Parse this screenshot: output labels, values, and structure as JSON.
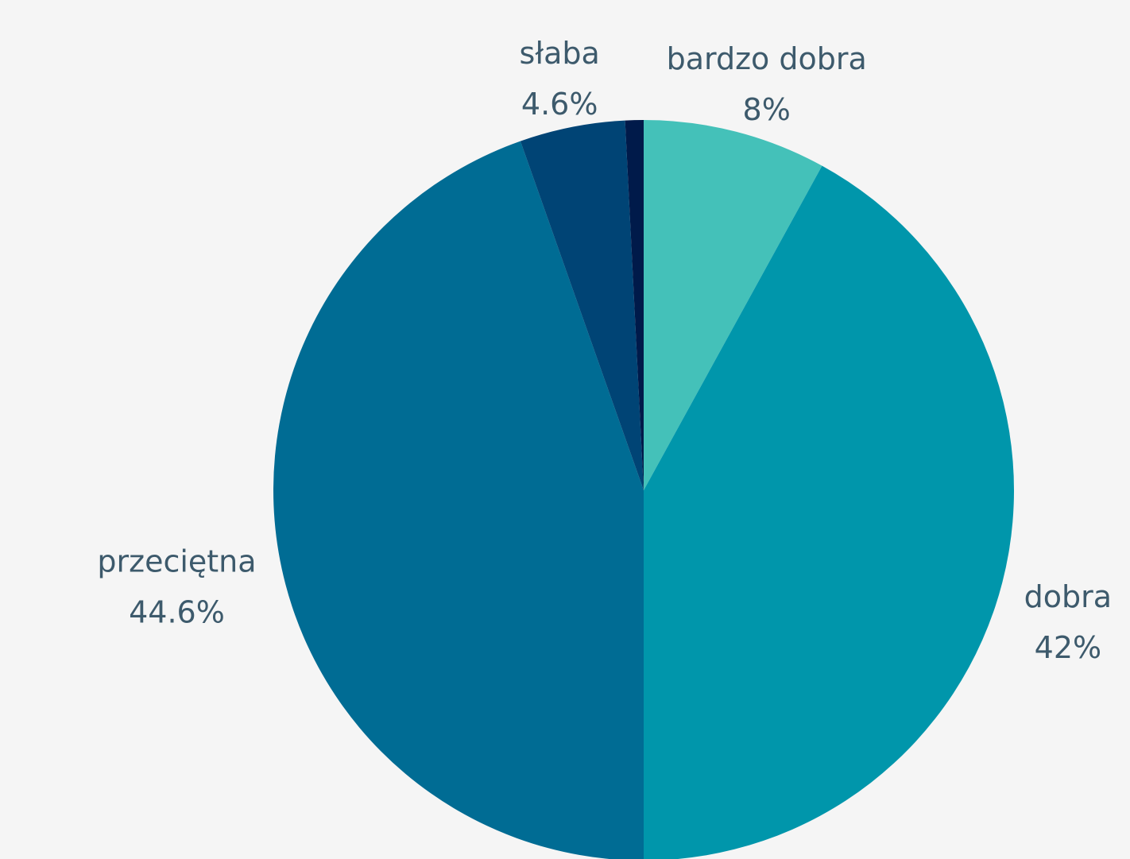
{
  "chart_data": {
    "type": "pie",
    "categories": [
      "bardzo dobra",
      "dobra",
      "przeciętna",
      "słaba",
      null
    ],
    "values": [
      8,
      42,
      44.6,
      4.6,
      0.8
    ],
    "value_labels": [
      "8%",
      "42%",
      "44.6%",
      "4.6%",
      null
    ],
    "colors": [
      "#44c1b9",
      "#0096ab",
      "#006c94",
      "#004475",
      "#001a4a"
    ]
  }
}
